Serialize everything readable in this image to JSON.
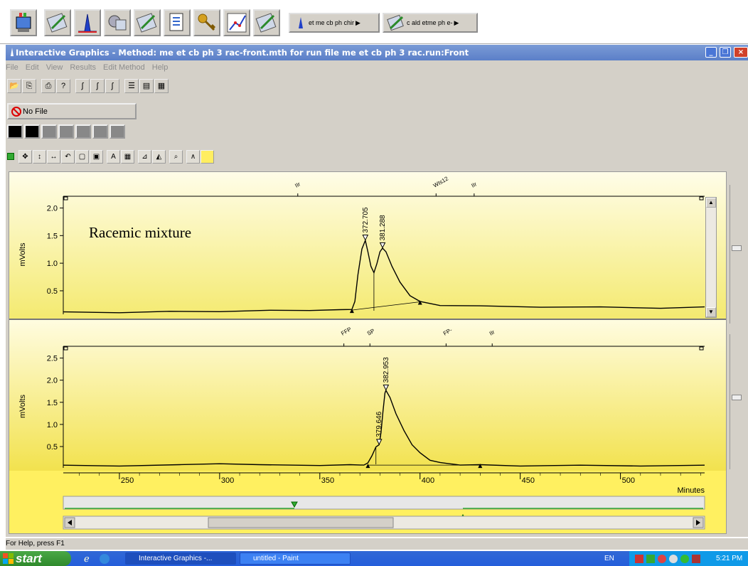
{
  "top_toolbar": {
    "chrom_button_label": "et me cb ph chir",
    "method_button_label": "c ald etme ph e-"
  },
  "titlebar": {
    "title": "Interactive Graphics - Method: me et cb ph 3 rac-front.mth for run file me et cb ph 3 rac.run:Front"
  },
  "menu": [
    "File",
    "Edit",
    "View",
    "Results",
    "Edit Method",
    "Help"
  ],
  "no_file_label": "No File",
  "status_text": "For Help, press F1",
  "chart_data": [
    {
      "type": "line",
      "title": "Racemic mixture",
      "ylabel": "mVolts",
      "ylim": [
        0.1,
        2.2
      ],
      "yticks": [
        0.5,
        1.0,
        1.5,
        2.0
      ],
      "xlim": [
        222,
        542
      ],
      "peaks": [
        {
          "label": "372.705",
          "x": 372.7,
          "y": 1.42
        },
        {
          "label": "381.288",
          "x": 381.3,
          "y": 1.28
        }
      ],
      "event_labels": [
        {
          "label": "IIr",
          "x": 339
        },
        {
          "label": "WIs12",
          "x": 408
        },
        {
          "label": "IIr",
          "x": 427
        }
      ],
      "series": [
        {
          "x": [
            222,
            250,
            275,
            300,
            325,
            345,
            360,
            366,
            367.5,
            369,
            371,
            372.7,
            374,
            375.5,
            377,
            378.5,
            380,
            381.3,
            383,
            386,
            390,
            395,
            400,
            410,
            430,
            460,
            490,
            520,
            542
          ],
          "y": [
            0.11,
            0.11,
            0.12,
            0.13,
            0.14,
            0.15,
            0.15,
            0.17,
            0.3,
            0.8,
            1.25,
            1.42,
            1.2,
            0.95,
            0.82,
            1.0,
            1.2,
            1.28,
            1.2,
            0.95,
            0.65,
            0.42,
            0.3,
            0.24,
            0.22,
            0.21,
            0.2,
            0.19,
            0.2
          ]
        }
      ]
    },
    {
      "type": "line",
      "ylabel": "mVolts",
      "xlabel": "Minutes",
      "ylim": [
        0.05,
        2.75
      ],
      "yticks": [
        0.5,
        1.0,
        1.5,
        2.0,
        2.5
      ],
      "xlim": [
        222,
        542
      ],
      "xticks": [
        250,
        300,
        350,
        400,
        450,
        500
      ],
      "peaks": [
        {
          "label": "379.646",
          "x": 379.6,
          "y": 0.55
        },
        {
          "label": "382.953",
          "x": 383.0,
          "y": 1.78
        }
      ],
      "event_labels": [
        {
          "label": "FFP",
          "x": 362
        },
        {
          "label": "SP",
          "x": 375
        },
        {
          "label": "FP-",
          "x": 413
        },
        {
          "label": "IIr",
          "x": 436
        }
      ],
      "series": [
        {
          "x": [
            222,
            250,
            280,
            300,
            320,
            350,
            365,
            372,
            374,
            376,
            378,
            379.6,
            380.5,
            381.5,
            382.5,
            383,
            385,
            388,
            392,
            396,
            400,
            405,
            410,
            420,
            430,
            450,
            480,
            510,
            542
          ],
          "y": [
            0.07,
            0.07,
            0.08,
            0.12,
            0.08,
            0.08,
            0.08,
            0.09,
            0.12,
            0.3,
            0.48,
            0.55,
            0.8,
            1.3,
            1.7,
            1.78,
            1.6,
            1.25,
            0.85,
            0.55,
            0.35,
            0.2,
            0.13,
            0.09,
            0.08,
            0.07,
            0.07,
            0.07,
            0.07
          ]
        }
      ]
    }
  ]
}
